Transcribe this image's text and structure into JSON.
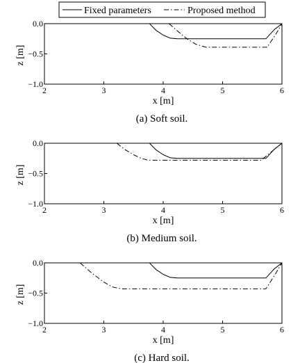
{
  "legend": {
    "fixed_label": "Fixed parameters",
    "proposed_label": "Proposed method"
  },
  "chart_data": [
    {
      "type": "line",
      "caption": "(a) Soft soil.",
      "xlabel": "x [m]",
      "ylabel": "z [m]",
      "xlim": [
        2,
        6
      ],
      "ylim": [
        -1.0,
        0.0
      ],
      "xticks": [
        "2",
        "3",
        "4",
        "5",
        "6"
      ],
      "yticks": [
        "0.0",
        "-0.5",
        "-1.0"
      ],
      "series": [
        {
          "name": "Fixed parameters",
          "style": "solid",
          "x": [
            3.77,
            3.88,
            4.0,
            4.12,
            4.25,
            5.73,
            5.87,
            6.0
          ],
          "y": [
            0.0,
            -0.11,
            -0.19,
            -0.24,
            -0.25,
            -0.25,
            -0.1,
            0.0
          ]
        },
        {
          "name": "Proposed method",
          "style": "dashdot",
          "x": [
            4.1,
            4.25,
            4.4,
            4.55,
            4.72,
            5.75,
            5.9,
            6.0
          ],
          "y": [
            0.0,
            -0.13,
            -0.25,
            -0.34,
            -0.39,
            -0.39,
            -0.17,
            0.0
          ]
        }
      ]
    },
    {
      "type": "line",
      "caption": "(b) Medium soil.",
      "xlabel": "x [m]",
      "ylabel": "z [m]",
      "xlim": [
        2,
        6
      ],
      "ylim": [
        -1.0,
        0.0
      ],
      "xticks": [
        "2",
        "3",
        "4",
        "5",
        "6"
      ],
      "yticks": [
        "0.0",
        "-0.5",
        "-1.0"
      ],
      "series": [
        {
          "name": "Fixed parameters",
          "style": "solid",
          "x": [
            3.77,
            3.88,
            4.0,
            4.12,
            4.25,
            5.73,
            5.87,
            6.0
          ],
          "y": [
            0.0,
            -0.11,
            -0.19,
            -0.24,
            -0.25,
            -0.25,
            -0.1,
            0.0
          ]
        },
        {
          "name": "Proposed method",
          "style": "dashdot",
          "x": [
            3.22,
            3.35,
            3.5,
            3.63,
            3.75,
            5.65,
            5.85,
            6.0
          ],
          "y": [
            0.0,
            -0.1,
            -0.19,
            -0.25,
            -0.28,
            -0.28,
            -0.12,
            0.0
          ]
        }
      ]
    },
    {
      "type": "line",
      "caption": "(c) Hard soil.",
      "xlabel": "x [m]",
      "ylabel": "z [m]",
      "xlim": [
        2,
        6
      ],
      "ylim": [
        -1.0,
        0.0
      ],
      "xticks": [
        "2",
        "3",
        "4",
        "5",
        "6"
      ],
      "yticks": [
        "0.0",
        "-0.5",
        "-1.0"
      ],
      "series": [
        {
          "name": "Fixed parameters",
          "style": "solid",
          "x": [
            3.77,
            3.88,
            4.0,
            4.12,
            4.25,
            5.73,
            5.87,
            6.0
          ],
          "y": [
            0.0,
            -0.11,
            -0.19,
            -0.24,
            -0.25,
            -0.25,
            -0.1,
            0.0
          ]
        },
        {
          "name": "Proposed method",
          "style": "dashdot",
          "x": [
            2.6,
            2.8,
            3.0,
            3.15,
            3.3,
            5.73,
            5.88,
            6.0
          ],
          "y": [
            0.0,
            -0.17,
            -0.32,
            -0.4,
            -0.43,
            -0.43,
            -0.2,
            0.0
          ]
        }
      ]
    }
  ]
}
